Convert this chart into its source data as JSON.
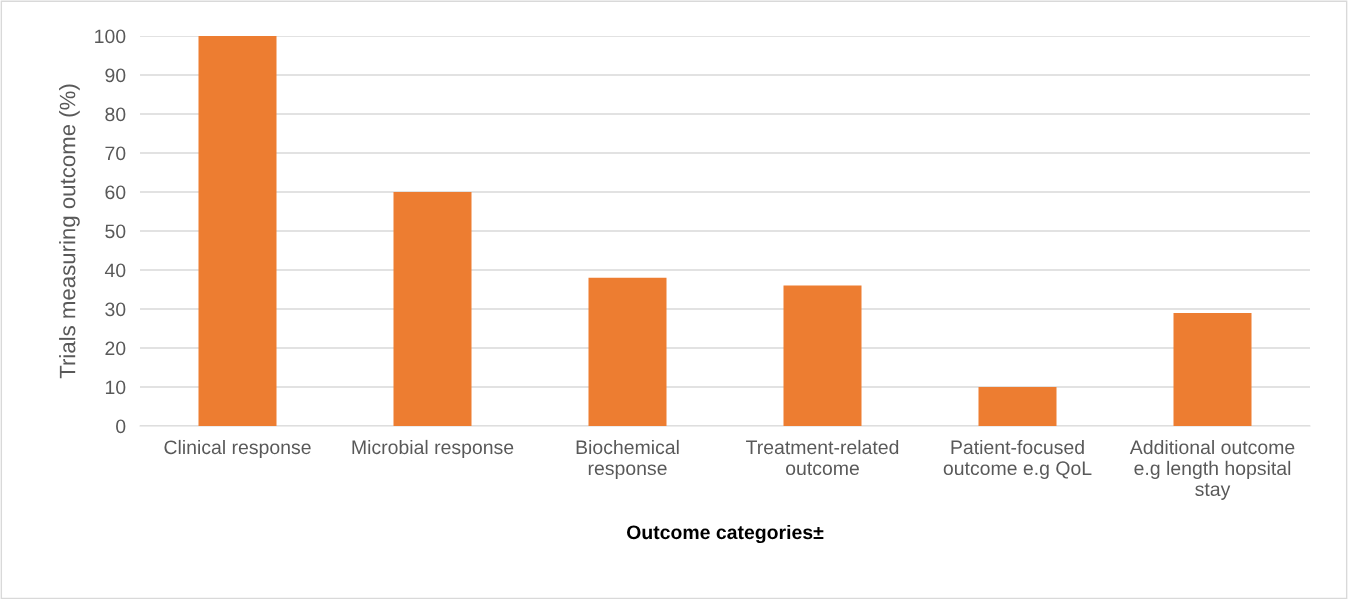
{
  "chart_data": {
    "type": "bar",
    "categories": [
      "Clinical response",
      "Microbial response",
      "Biochemical response",
      "Treatment-related outcome",
      "Patient-focused outcome e.g QoL",
      "Additional outcome e.g length hopsital stay"
    ],
    "values": [
      100,
      60,
      38,
      36,
      10,
      29
    ],
    "color": "#ed7d31",
    "xlabel": "Outcome categories±",
    "ylabel": "Trials measuring outcome (%)",
    "ylim": [
      0,
      100
    ],
    "yticks": [
      0,
      10,
      20,
      30,
      40,
      50,
      60,
      70,
      80,
      90,
      100
    ],
    "grid": "y"
  }
}
